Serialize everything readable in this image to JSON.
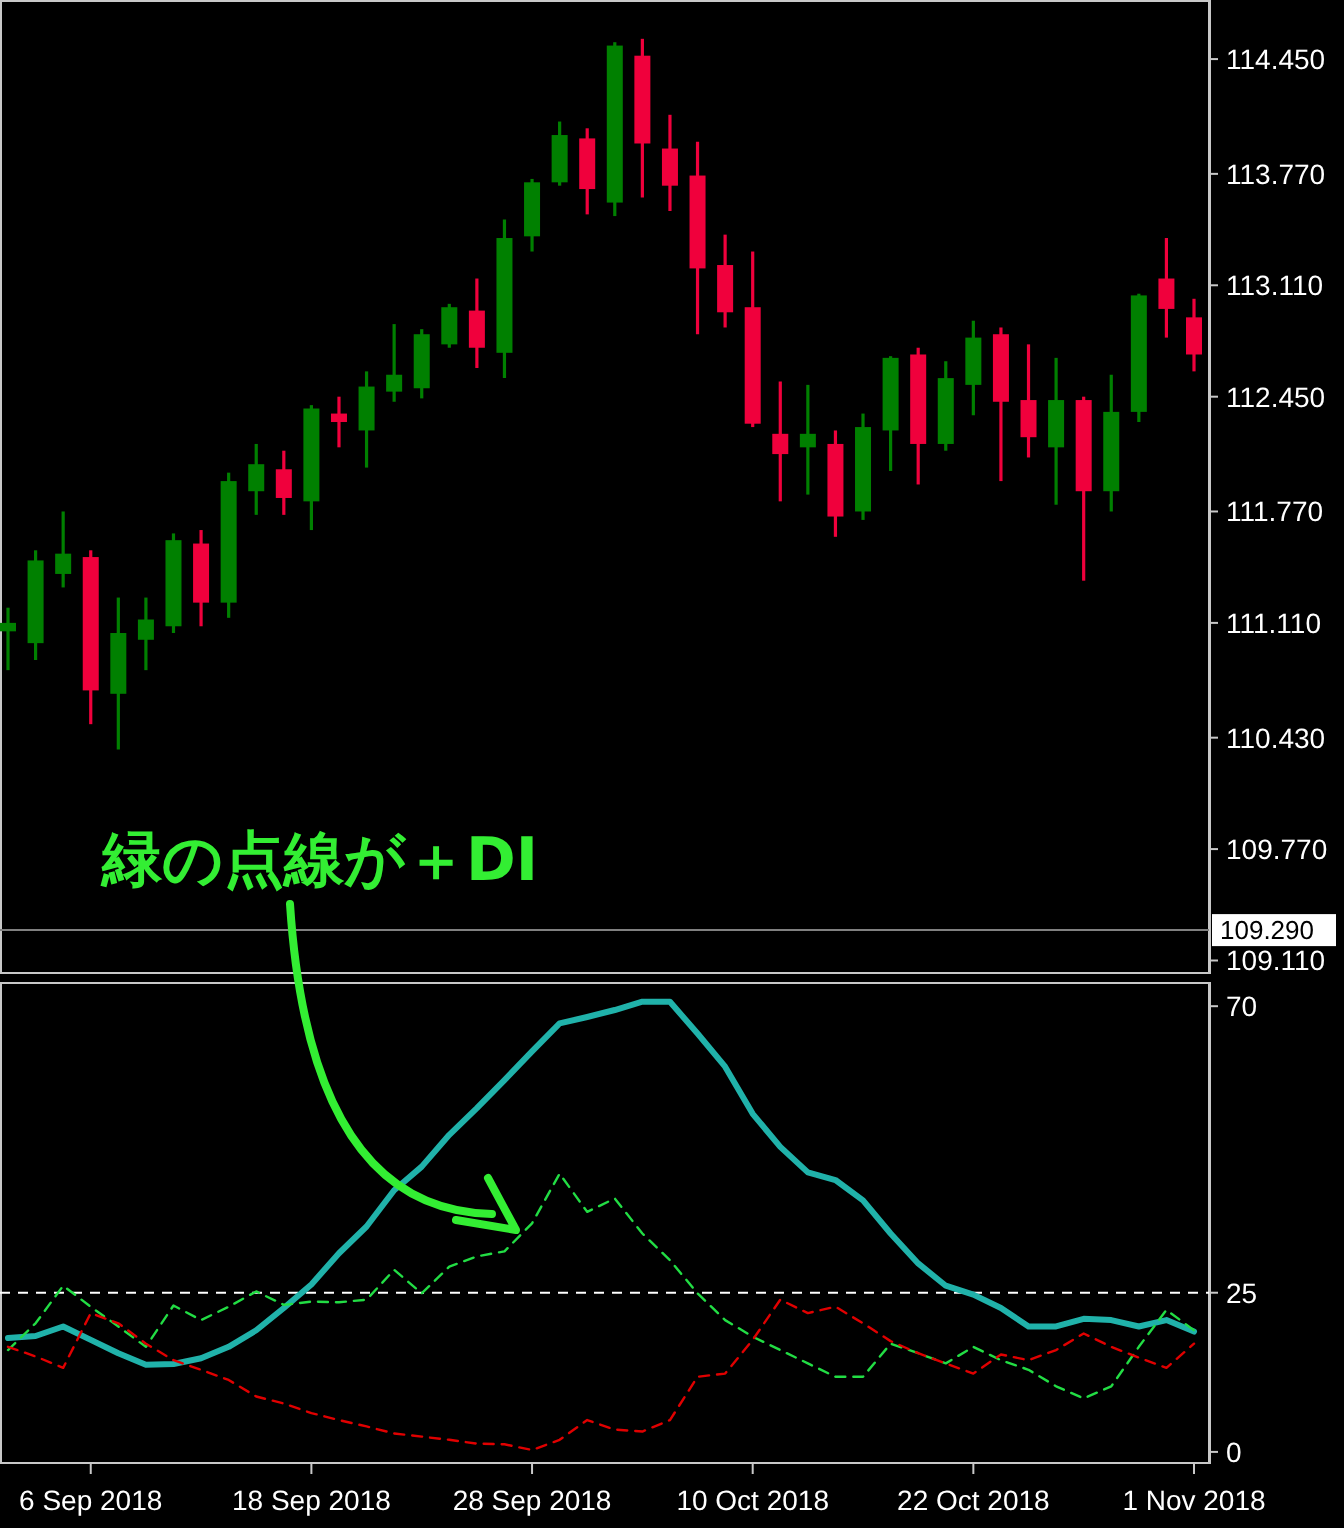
{
  "chart_data": [
    {
      "type": "candlestick",
      "tick_labels": "y",
      "categories": [
        null,
        null,
        null,
        null,
        null,
        null,
        null,
        null,
        null,
        null,
        null,
        null,
        null,
        null,
        null,
        null,
        null,
        null,
        null,
        null,
        null,
        null,
        null,
        null,
        null,
        null,
        null,
        null,
        null,
        null,
        null,
        null,
        null,
        null,
        null,
        null,
        null,
        null,
        null,
        null,
        null,
        null,
        null,
        null
      ],
      "ohlc": [
        [
          111.06,
          111.2,
          110.83,
          111.11
        ],
        [
          110.99,
          111.54,
          110.89,
          111.48
        ],
        [
          111.4,
          111.77,
          111.32,
          111.52
        ],
        [
          111.5,
          111.54,
          110.51,
          110.71
        ],
        [
          110.69,
          111.26,
          110.36,
          111.05
        ],
        [
          111.01,
          111.26,
          110.83,
          111.13
        ],
        [
          111.09,
          111.64,
          111.05,
          111.6
        ],
        [
          111.58,
          111.66,
          111.09,
          111.23
        ],
        [
          111.23,
          112.0,
          111.14,
          111.95
        ],
        [
          111.89,
          112.17,
          111.75,
          112.05
        ],
        [
          112.02,
          112.13,
          111.75,
          111.85
        ],
        [
          111.83,
          112.4,
          111.66,
          112.38
        ],
        [
          112.35,
          112.45,
          112.15,
          112.3
        ],
        [
          112.25,
          112.6,
          112.03,
          112.51
        ],
        [
          112.48,
          112.88,
          112.42,
          112.58
        ],
        [
          112.5,
          112.85,
          112.44,
          112.82
        ],
        [
          112.76,
          113.0,
          112.74,
          112.98
        ],
        [
          112.96,
          113.15,
          112.62,
          112.74
        ],
        [
          112.71,
          113.5,
          112.56,
          113.39
        ],
        [
          113.4,
          113.74,
          113.31,
          113.72
        ],
        [
          113.72,
          114.08,
          113.7,
          114.0
        ],
        [
          113.98,
          114.04,
          113.53,
          113.68
        ],
        [
          113.6,
          114.55,
          113.52,
          114.53
        ],
        [
          114.47,
          114.57,
          113.63,
          113.95
        ],
        [
          113.92,
          114.12,
          113.55,
          113.7
        ],
        [
          113.76,
          113.96,
          112.82,
          113.21
        ],
        [
          113.23,
          113.41,
          112.86,
          112.95
        ],
        [
          112.98,
          113.31,
          112.27,
          112.29
        ],
        [
          112.23,
          112.54,
          111.83,
          112.11
        ],
        [
          112.15,
          112.52,
          111.87,
          112.23
        ],
        [
          112.17,
          112.25,
          111.62,
          111.74
        ],
        [
          111.77,
          112.35,
          111.72,
          112.27
        ],
        [
          112.25,
          112.69,
          112.01,
          112.68
        ],
        [
          112.7,
          112.74,
          111.93,
          112.17
        ],
        [
          112.17,
          112.66,
          112.13,
          112.56
        ],
        [
          112.52,
          112.9,
          112.34,
          112.8
        ],
        [
          112.82,
          112.86,
          111.95,
          112.42
        ],
        [
          112.43,
          112.76,
          112.09,
          112.21
        ],
        [
          112.15,
          112.68,
          111.81,
          112.43
        ],
        [
          112.43,
          112.45,
          111.36,
          111.89
        ],
        [
          111.89,
          112.58,
          111.77,
          112.36
        ],
        [
          112.36,
          113.06,
          112.3,
          113.05
        ],
        [
          113.15,
          113.39,
          112.8,
          112.97
        ],
        [
          112.92,
          113.03,
          112.6,
          112.7
        ]
      ],
      "colors": [
        "#008000",
        "#008000",
        "#008000",
        "#f0003c",
        "#008000",
        "#008000",
        "#008000",
        "#f0003c",
        "#008000",
        "#008000",
        "#f0003c",
        "#008000",
        "#f0003c",
        "#008000",
        "#008000",
        "#008000",
        "#008000",
        "#f0003c",
        "#008000",
        "#008000",
        "#008000",
        "#f0003c",
        "#008000",
        "#f0003c",
        "#f0003c",
        "#f0003c",
        "#f0003c",
        "#f0003c",
        "#f0003c",
        "#008000",
        "#f0003c",
        "#008000",
        "#008000",
        "#f0003c",
        "#008000",
        "#008000",
        "#f0003c",
        "#f0003c",
        "#008000",
        "#f0003c",
        "#008000",
        "#008000",
        "#f0003c",
        "#f0003c"
      ],
      "ylim": [
        109.03,
        114.8
      ],
      "yticks": [
        {
          "value": 114.45,
          "label": "114.450"
        },
        {
          "value": 113.77,
          "label": "113.770"
        },
        {
          "value": 113.11,
          "label": "113.110"
        },
        {
          "value": 112.45,
          "label": "112.450"
        },
        {
          "value": 111.77,
          "label": "111.770"
        },
        {
          "value": 111.11,
          "label": "111.110"
        },
        {
          "value": 110.43,
          "label": "110.430"
        },
        {
          "value": 109.77,
          "label": "109.770"
        },
        {
          "value": 109.11,
          "label": "109.110"
        }
      ],
      "ref_lines": [
        {
          "axis": "y",
          "value": 109.29,
          "label": "109.290",
          "color": "#808080"
        }
      ]
    },
    {
      "type": "line",
      "categories": [
        null,
        null,
        null,
        "6 Sep 2018",
        null,
        null,
        null,
        null,
        null,
        null,
        null,
        "18 Sep 2018",
        null,
        null,
        null,
        null,
        null,
        null,
        null,
        "28 Sep 2018",
        null,
        null,
        null,
        null,
        null,
        null,
        null,
        "10 Oct 2018",
        null,
        null,
        null,
        null,
        null,
        null,
        null,
        "22 Oct 2018",
        null,
        null,
        null,
        null,
        null,
        null,
        null,
        "1 Nov 2018"
      ],
      "series": [
        {
          "color": "#20b2aa",
          "line_style": "solid",
          "values": [
            17.9,
            18.2,
            19.7,
            17.6,
            15.5,
            13.7,
            13.8,
            14.7,
            16.5,
            19.1,
            22.6,
            26.3,
            31.2,
            35.4,
            41.1,
            44.8,
            49.8,
            54.0,
            58.4,
            62.9,
            67.3,
            68.3,
            69.4,
            70.7,
            70.7,
            65.7,
            60.5,
            53.1,
            47.9,
            43.9,
            42.7,
            39.5,
            34.3,
            29.6,
            26.1,
            24.7,
            22.6,
            19.7,
            19.7,
            20.9,
            20.7,
            19.7,
            20.7,
            18.9
          ]
        },
        {
          "color": "#22dd44",
          "line_style": "dashed",
          "values": [
            16.0,
            20.2,
            26.1,
            22.8,
            19.7,
            16.5,
            23.0,
            20.7,
            22.8,
            25.2,
            23.1,
            23.6,
            23.5,
            23.9,
            28.6,
            24.9,
            29.1,
            30.7,
            31.5,
            35.9,
            43.7,
            37.7,
            39.8,
            34.3,
            30.1,
            24.9,
            20.7,
            18.1,
            16.0,
            13.9,
            11.8,
            11.8,
            17.0,
            15.5,
            13.9,
            16.5,
            14.4,
            12.9,
            10.3,
            8.4,
            10.3,
            16.5,
            22.3,
            19.1
          ]
        },
        {
          "color": "#e00000",
          "line_style": "dashed",
          "values": [
            16.5,
            15.0,
            13.2,
            21.8,
            20.2,
            17.0,
            14.4,
            12.9,
            11.3,
            8.7,
            7.6,
            6.1,
            5.0,
            4.0,
            2.9,
            2.4,
            1.9,
            1.3,
            1.2,
            0.3,
            1.9,
            5.0,
            3.5,
            3.2,
            5.0,
            11.8,
            12.3,
            17.6,
            23.9,
            21.8,
            22.8,
            20.2,
            17.4,
            15.5,
            13.9,
            12.3,
            15.3,
            14.4,
            16.0,
            18.6,
            16.5,
            14.8,
            13.2,
            17.0
          ]
        }
      ],
      "ylim": [
        -1.9,
        73.8
      ],
      "yticks": [
        70,
        25,
        0
      ],
      "ref_lines": [
        {
          "axis": "y",
          "value": 25,
          "color": "#ffffff",
          "line_style": "dashed"
        }
      ],
      "annotations": [
        "緑の点線が＋DI"
      ]
    }
  ]
}
